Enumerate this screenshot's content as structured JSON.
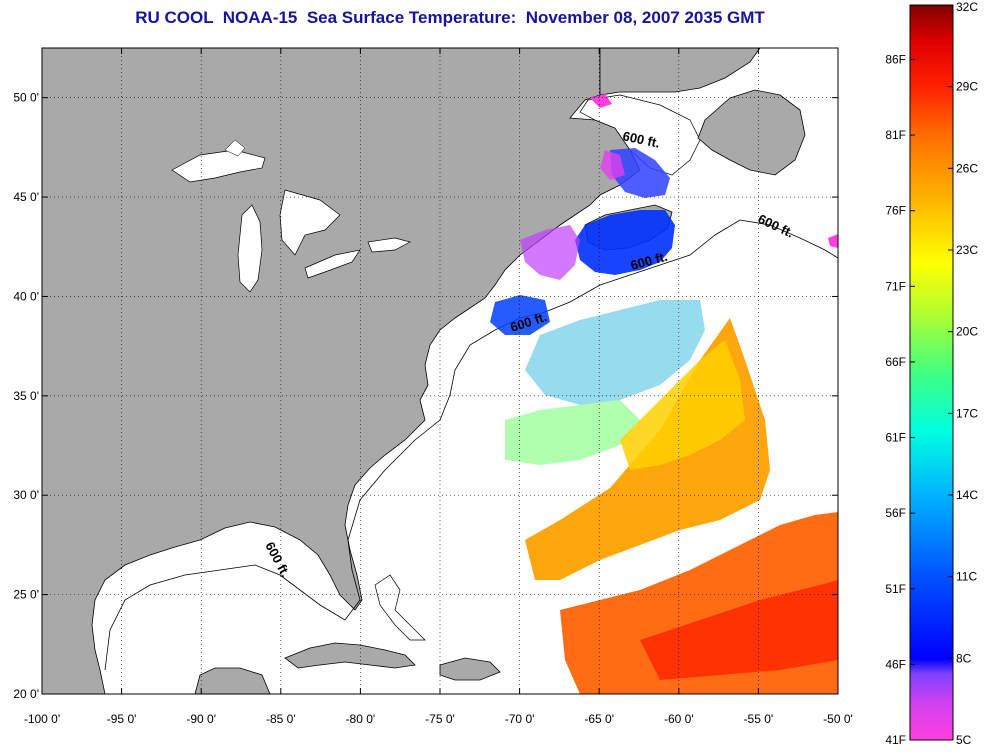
{
  "title": "RU COOL  NOAA-15  Sea Surface Temperature:  November 08, 2007 2035 GMT",
  "axes": {
    "x_ticks": [
      "-100 0'",
      "-95 0'",
      "-90 0'",
      "-85 0'",
      "-80 0'",
      "-75 0'",
      "-70 0'",
      "-65 0'",
      "-60 0'",
      "-55 0'",
      "-50 0'"
    ],
    "x_values": [
      -100,
      -95,
      -90,
      -85,
      -80,
      -75,
      -70,
      -65,
      -60,
      -55,
      -50
    ],
    "y_ticks": [
      "20 0'",
      "25 0'",
      "30 0'",
      "35 0'",
      "40 0'",
      "45 0'",
      "50 0'"
    ],
    "y_values": [
      20,
      25,
      30,
      35,
      40,
      45,
      50
    ],
    "lon_range": [
      -100,
      -50
    ],
    "lat_range": [
      20,
      52.5
    ],
    "grid": true
  },
  "contour_label": "600 ft.",
  "colorbar": {
    "fahrenheit_labels": [
      "86F",
      "81F",
      "76F",
      "71F",
      "66F",
      "61F",
      "56F",
      "51F",
      "46F",
      "41F"
    ],
    "celsius_labels": [
      "32C",
      "29C",
      "26C",
      "23C",
      "20C",
      "17C",
      "14C",
      "11C",
      "8C",
      "5C"
    ],
    "range_c": [
      5,
      32
    ],
    "colors": [
      "#ff40e0",
      "#b040ff",
      "#0000ff",
      "#0070ff",
      "#00c0ff",
      "#00ffe0",
      "#40ff80",
      "#b0ff30",
      "#ffff00",
      "#ffc000",
      "#ff8000",
      "#ff3000",
      "#ff0000",
      "#b00000",
      "#800000"
    ]
  },
  "colors": {
    "land": "#a9a9a9",
    "water": "#ffffff",
    "title": "#1414a0"
  }
}
